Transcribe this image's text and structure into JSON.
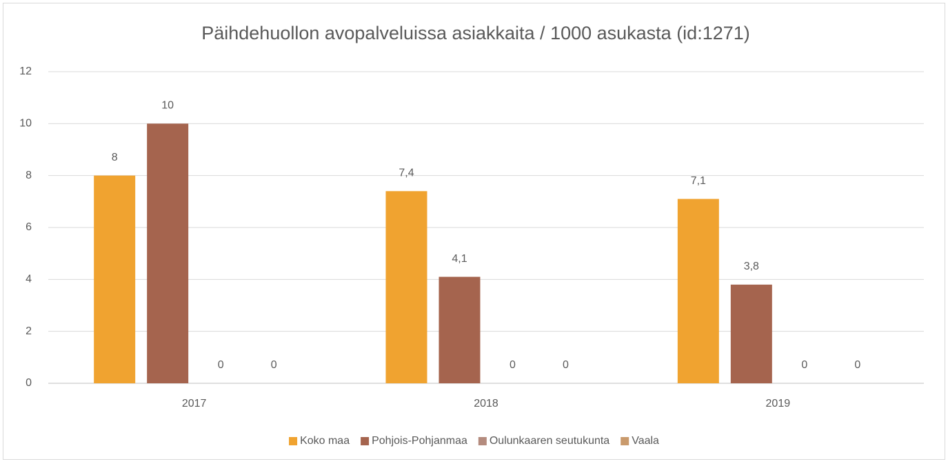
{
  "chart_data": {
    "type": "bar",
    "title": "Päihdehuollon avopalveluissa asiakkaita / 1000 asukasta (id:1271)",
    "categories": [
      "2017",
      "2018",
      "2019"
    ],
    "series": [
      {
        "name": "Koko maa",
        "color": "#f0a330",
        "values": [
          8,
          7.4,
          7.1
        ],
        "value_labels": [
          "8",
          "7,4",
          "7,1"
        ]
      },
      {
        "name": "Pohjois-Pohjanmaa",
        "color": "#a5644e",
        "values": [
          10,
          4.1,
          3.8
        ],
        "value_labels": [
          "10",
          "4,1",
          "3,8"
        ]
      },
      {
        "name": "Oulunkaaren seutukunta",
        "color": "#b48b7e",
        "values": [
          0,
          0,
          0
        ],
        "value_labels": [
          "0",
          "0",
          "0"
        ]
      },
      {
        "name": "Vaala",
        "color": "#c99a6c",
        "values": [
          0,
          0,
          0
        ],
        "value_labels": [
          "0",
          "0",
          "0"
        ]
      }
    ],
    "ylim": [
      0,
      12
    ],
    "yticks": [
      0,
      2,
      4,
      6,
      8,
      10,
      12
    ],
    "grid": true,
    "legend": "bottom"
  }
}
